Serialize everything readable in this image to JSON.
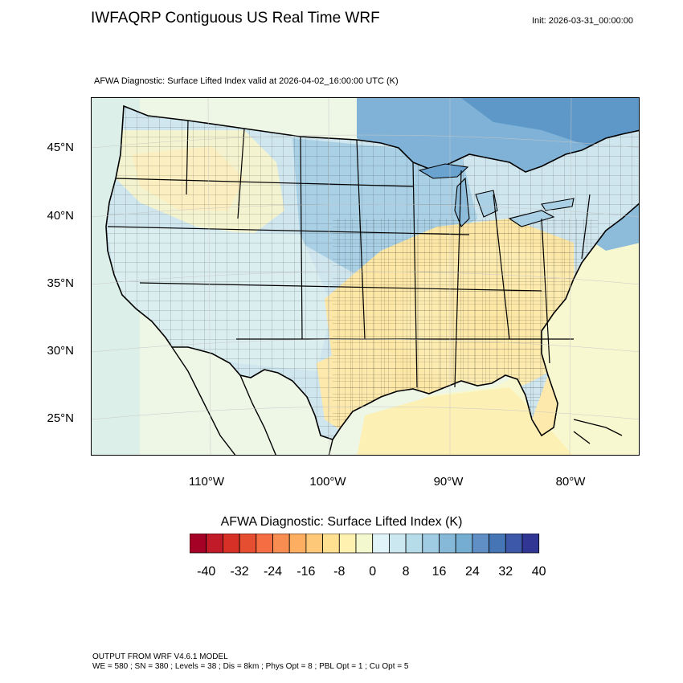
{
  "header": {
    "title": "IWFAQRP Contiguous US Real Time WRF",
    "init": "Init: 2026-03-31_00:00:00",
    "valid": "AFWA Diagnostic: Surface Lifted Index valid at 2026-04-02_16:00:00 UTC   (K)"
  },
  "map": {
    "lat_labels": [
      "45°N",
      "40°N",
      "35°N",
      "30°N",
      "25°N"
    ],
    "lon_labels": [
      "110°W",
      "100°W",
      "90°W",
      "80°W"
    ],
    "colors": {
      "water_north": "#6aa3cf",
      "stable_blue": "#a8d0e4",
      "neutral": "#e4f2ee",
      "unstable_yellow": "#fde9a8",
      "gulf": "#fdf0b4",
      "atlantic": "#f6f8cf"
    }
  },
  "colorbar": {
    "title": "AFWA Diagnostic: Surface Lifted Index  (K)",
    "ticks": [
      "-40",
      "-32",
      "-24",
      "-16",
      "-8",
      "0",
      "8",
      "16",
      "24",
      "32",
      "40"
    ],
    "colors": [
      "#a50026",
      "#c11b2a",
      "#d73027",
      "#e54e30",
      "#f46d43",
      "#f88d52",
      "#fdae61",
      "#fdc877",
      "#fee090",
      "#fff2b0",
      "#f4f8cf",
      "#e0f3f8",
      "#cbe7f0",
      "#b6dcea",
      "#9fcce3",
      "#86b8d8",
      "#74add1",
      "#5f8fc4",
      "#4575b4",
      "#3d58a8",
      "#313695"
    ]
  },
  "footer": {
    "line1": "OUTPUT FROM WRF V4.6.1 MODEL",
    "line2": "WE = 580 ; SN = 380 ; Levels = 38 ; Dis = 8km ; Phys Opt = 8 ; PBL Opt = 1 ; Cu Opt = 5"
  }
}
